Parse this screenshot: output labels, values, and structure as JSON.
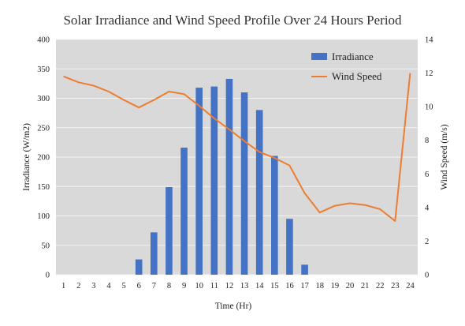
{
  "chart_data": {
    "type": "bar+line",
    "title": "Solar Irradiance and Wind Speed Profile Over 24 Hours Period",
    "xlabel": "Time (Hr)",
    "ylabel_left": "Irradiance (W/m2)",
    "ylabel_right": "Wind Speed (m/s)",
    "categories": [
      "1",
      "2",
      "3",
      "4",
      "5",
      "6",
      "7",
      "8",
      "9",
      "10",
      "11",
      "12",
      "13",
      "14",
      "15",
      "16",
      "17",
      "18",
      "19",
      "20",
      "21",
      "22",
      "23",
      "24"
    ],
    "ylim_left": [
      0,
      400
    ],
    "yticks_left": [
      "0",
      "50",
      "100",
      "150",
      "200",
      "250",
      "300",
      "350",
      "400"
    ],
    "ylim_right": [
      0,
      14
    ],
    "yticks_right": [
      "0",
      "2",
      "4",
      "6",
      "8",
      "10",
      "12",
      "14"
    ],
    "grid": true,
    "legend_position": "top-right",
    "series": [
      {
        "name": "Irradiance",
        "type": "bar",
        "axis": "left",
        "color": "#4472C4",
        "values": [
          0,
          0,
          0,
          0,
          0,
          26,
          72,
          149,
          216,
          318,
          320,
          333,
          310,
          280,
          202,
          95,
          17,
          0,
          0,
          0,
          0,
          0,
          0,
          0
        ]
      },
      {
        "name": "Wind Speed",
        "type": "line",
        "axis": "right",
        "color": "#ED7D31",
        "values": [
          11.8,
          11.45,
          11.25,
          10.9,
          10.4,
          9.95,
          10.4,
          10.9,
          10.75,
          10.05,
          9.3,
          8.65,
          7.95,
          7.3,
          6.95,
          6.5,
          4.85,
          3.7,
          4.1,
          4.25,
          4.15,
          3.9,
          3.2,
          12.0
        ]
      }
    ]
  }
}
